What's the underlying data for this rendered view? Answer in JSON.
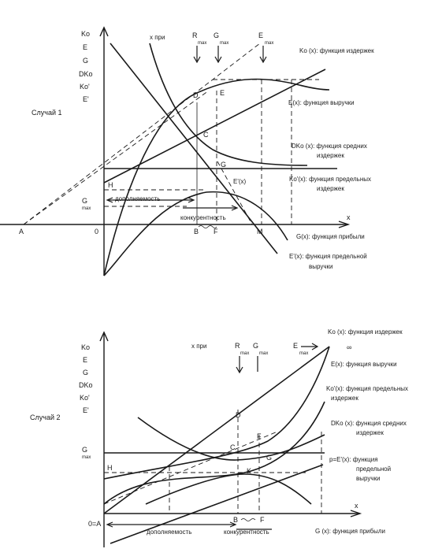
{
  "case1": {
    "title": "Случай 1",
    "y_labels": [
      "Ko",
      "E",
      "G",
      "DKo",
      "Ko'",
      "E'"
    ],
    "x_label": "x",
    "top_labels": {
      "x_pri": "x при",
      "R": "R",
      "G": "G",
      "E": "E",
      "max": "max"
    },
    "points": {
      "A": "A",
      "O": "0",
      "B": "B",
      "F": "F",
      "M": "M",
      "D": "D",
      "E": "E",
      "C": "C",
      "G": "G",
      "H": "H",
      "Gmax": "G",
      "Gmax_sub": "max"
    },
    "curve_labels": {
      "cost": "Ko (x): функция издержек",
      "revenue": "E(x): функция выручки",
      "avg1": "DKo (x): функция средних",
      "avg2": "издержек",
      "marg1": "Ko'(x): функция предельных",
      "marg2": "издержек",
      "eprime": "E'(x)",
      "profit": "G(x): функция прибыли",
      "mrev1": "E'(x): функция предельной",
      "mrev2": "выручки"
    },
    "region_labels": {
      "complementarity": "дополняемость",
      "competition": "конкурентность"
    }
  },
  "case2": {
    "title": "Случай 2",
    "y_labels": [
      "Ko",
      "E",
      "G",
      "DKo",
      "Ko'",
      "E'"
    ],
    "x_label": "x",
    "top_labels": {
      "x_pri": "x при",
      "R": "R",
      "G": "G",
      "E": "E",
      "max": "max"
    },
    "points": {
      "OA": "0=A",
      "B": "B",
      "F": "F",
      "D": "D",
      "F2": "F",
      "C": "C",
      "G": "G",
      "K": "K",
      "H": "H",
      "Gmax": "G",
      "Gmax_sub": "max",
      "inf": "∞"
    },
    "curve_labels": {
      "cost": "Ko (x): функция издержек",
      "revenue": "E(x): функция выручки",
      "marg1": "Ko'(x): функция предельных",
      "marg2": "издержек",
      "avg1": "DKo (x): функция средних",
      "avg2": "издержек",
      "price1": "p=E'(x): функция",
      "price2": "предельной",
      "price3": "выручки",
      "profit": "G (x): функция прибыли"
    },
    "region_labels": {
      "complementarity": "дополняемость",
      "competition": "конкурентность"
    }
  }
}
